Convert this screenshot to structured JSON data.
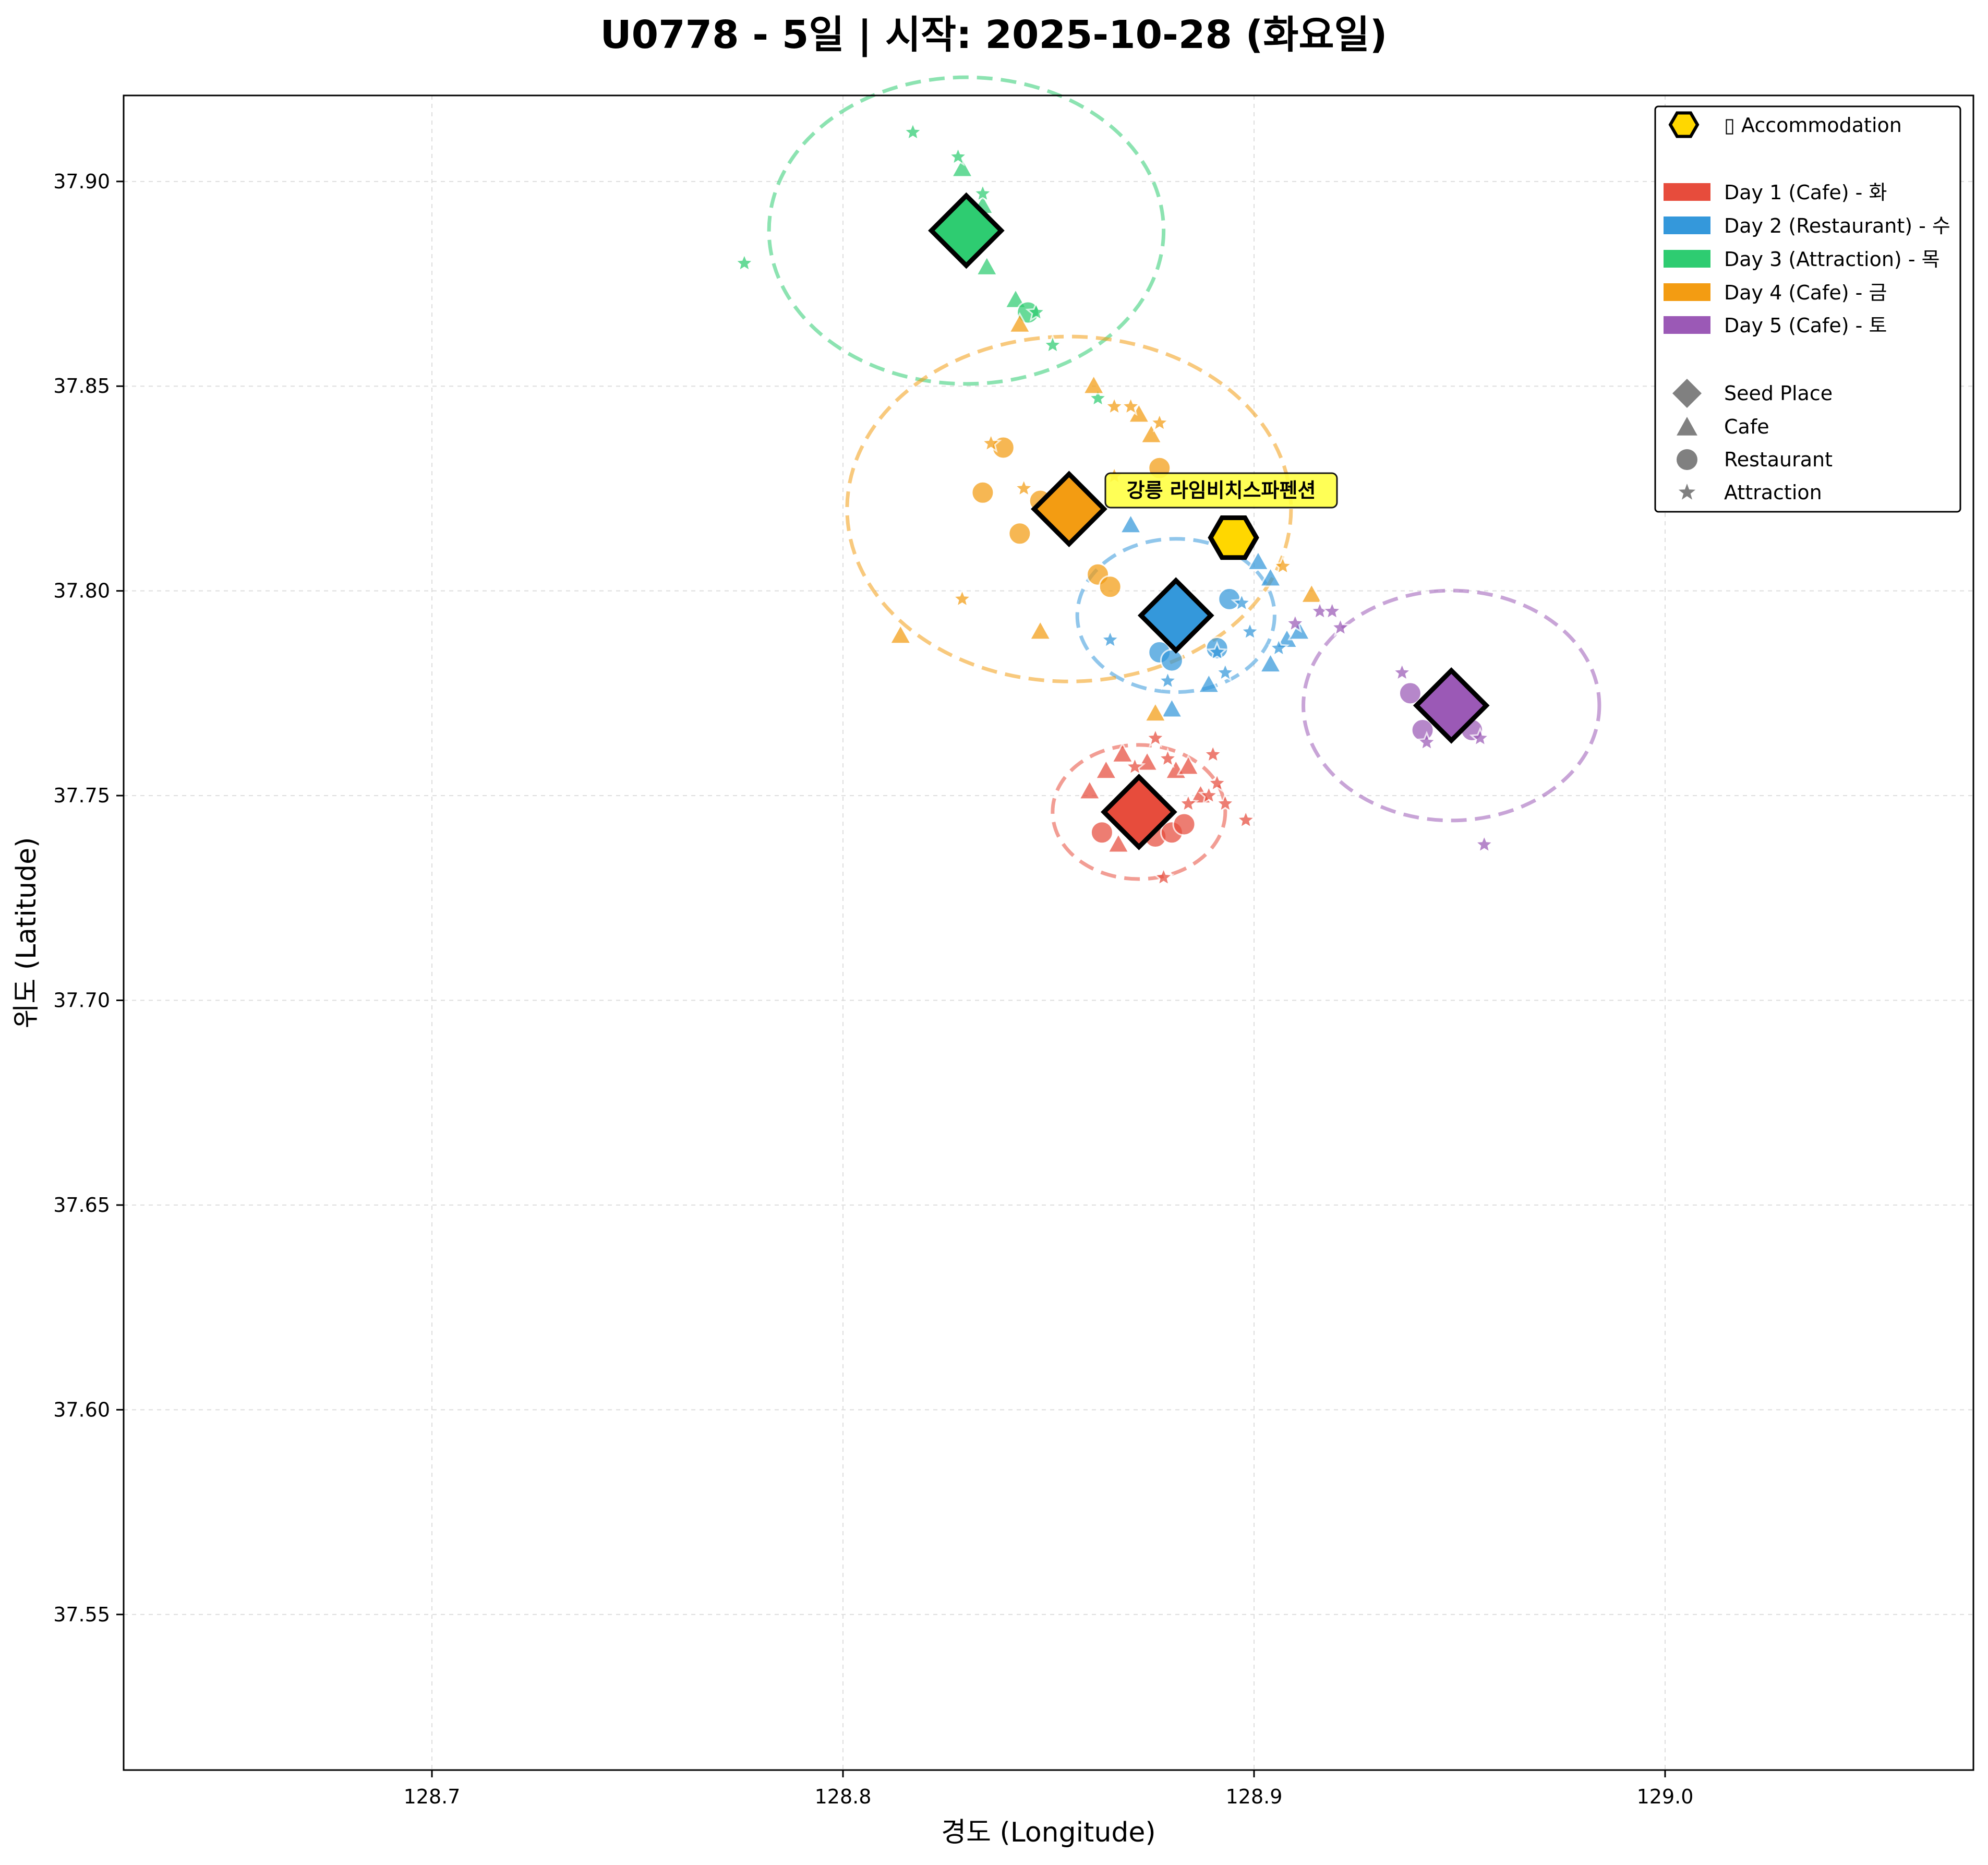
{
  "chart_data": {
    "type": "scatter",
    "title": "U0778 - 5일 | 시작: 2025-10-28 (화요일)",
    "xlabel": "경도 (Longitude)",
    "ylabel": "위도 (Latitude)",
    "xlim": [
      128.625,
      129.075
    ],
    "ylim": [
      37.512,
      37.921
    ],
    "x_ticks": [
      128.7,
      128.8,
      128.9,
      129.0
    ],
    "y_ticks": [
      37.55,
      37.6,
      37.65,
      37.7,
      37.75,
      37.8,
      37.85,
      37.9
    ],
    "grid": true,
    "legend_position": "top-right",
    "accommodation": {
      "label": "강릉 라임비치스파펜션",
      "x": 128.895,
      "y": 37.813,
      "color": "#FFD700"
    },
    "legend": {
      "accommodation_label": "▯ Accommodation",
      "day_entries": [
        "Day 1 (Cafe) - 화",
        "Day 2 (Restaurant) - 수",
        "Day 3 (Attraction) - 목",
        "Day 4 (Cafe) - 금",
        "Day 5 (Cafe) - 토"
      ],
      "marker_entries": [
        "Seed Place",
        "Cafe",
        "Restaurant",
        "Attraction"
      ]
    },
    "days": [
      {
        "color": "#E74C3C",
        "seed": {
          "x": 128.872,
          "y": 37.746
        },
        "radius_lon": 0.021,
        "places": [
          {
            "k": "cafe",
            "x": 128.86,
            "y": 37.751
          },
          {
            "k": "cafe",
            "x": 128.864,
            "y": 37.756
          },
          {
            "k": "cafe",
            "x": 128.868,
            "y": 37.76
          },
          {
            "k": "cafe",
            "x": 128.874,
            "y": 37.758
          },
          {
            "k": "cafe",
            "x": 128.881,
            "y": 37.756
          },
          {
            "k": "cafe",
            "x": 128.884,
            "y": 37.757
          },
          {
            "k": "cafe",
            "x": 128.867,
            "y": 37.738
          },
          {
            "k": "cafe",
            "x": 128.887,
            "y": 37.75
          },
          {
            "k": "restaurant",
            "x": 128.863,
            "y": 37.741
          },
          {
            "k": "restaurant",
            "x": 128.876,
            "y": 37.74
          },
          {
            "k": "restaurant",
            "x": 128.88,
            "y": 37.741
          },
          {
            "k": "restaurant",
            "x": 128.883,
            "y": 37.743
          },
          {
            "k": "attraction",
            "x": 128.876,
            "y": 37.764
          },
          {
            "k": "attraction",
            "x": 128.879,
            "y": 37.759
          },
          {
            "k": "attraction",
            "x": 128.89,
            "y": 37.76
          },
          {
            "k": "attraction",
            "x": 128.891,
            "y": 37.753
          },
          {
            "k": "attraction",
            "x": 128.884,
            "y": 37.748
          },
          {
            "k": "attraction",
            "x": 128.889,
            "y": 37.75
          },
          {
            "k": "attraction",
            "x": 128.893,
            "y": 37.748
          },
          {
            "k": "attraction",
            "x": 128.898,
            "y": 37.744
          },
          {
            "k": "attraction",
            "x": 128.878,
            "y": 37.73
          },
          {
            "k": "attraction",
            "x": 128.871,
            "y": 37.757
          }
        ]
      },
      {
        "color": "#3498DB",
        "seed": {
          "x": 128.881,
          "y": 37.794
        },
        "radius_lon": 0.024,
        "places": [
          {
            "k": "cafe",
            "x": 128.87,
            "y": 37.816
          },
          {
            "k": "cafe",
            "x": 128.901,
            "y": 37.807
          },
          {
            "k": "cafe",
            "x": 128.904,
            "y": 37.803
          },
          {
            "k": "cafe",
            "x": 128.889,
            "y": 37.777
          },
          {
            "k": "cafe",
            "x": 128.904,
            "y": 37.782
          },
          {
            "k": "cafe",
            "x": 128.908,
            "y": 37.788
          },
          {
            "k": "cafe",
            "x": 128.88,
            "y": 37.771
          },
          {
            "k": "cafe",
            "x": 128.911,
            "y": 37.79
          },
          {
            "k": "restaurant",
            "x": 128.877,
            "y": 37.785
          },
          {
            "k": "restaurant",
            "x": 128.88,
            "y": 37.783
          },
          {
            "k": "restaurant",
            "x": 128.891,
            "y": 37.786
          },
          {
            "k": "restaurant",
            "x": 128.894,
            "y": 37.798
          },
          {
            "k": "attraction",
            "x": 128.865,
            "y": 37.788
          },
          {
            "k": "attraction",
            "x": 128.879,
            "y": 37.778
          },
          {
            "k": "attraction",
            "x": 128.893,
            "y": 37.78
          },
          {
            "k": "attraction",
            "x": 128.899,
            "y": 37.79
          },
          {
            "k": "attraction",
            "x": 128.897,
            "y": 37.797
          },
          {
            "k": "attraction",
            "x": 128.906,
            "y": 37.786
          },
          {
            "k": "attraction",
            "x": 128.891,
            "y": 37.785
          }
        ]
      },
      {
        "color": "#2ECC71",
        "seed": {
          "x": 128.83,
          "y": 37.888
        },
        "radius_lon": 0.048,
        "places": [
          {
            "k": "cafe",
            "x": 128.829,
            "y": 37.903
          },
          {
            "k": "cafe",
            "x": 128.834,
            "y": 37.894
          },
          {
            "k": "cafe",
            "x": 128.835,
            "y": 37.879
          },
          {
            "k": "cafe",
            "x": 128.842,
            "y": 37.871
          },
          {
            "k": "restaurant",
            "x": 128.845,
            "y": 37.868
          },
          {
            "k": "attraction",
            "x": 128.817,
            "y": 37.912
          },
          {
            "k": "attraction",
            "x": 128.828,
            "y": 37.906
          },
          {
            "k": "attraction",
            "x": 128.834,
            "y": 37.897
          },
          {
            "k": "attraction",
            "x": 128.776,
            "y": 37.88
          },
          {
            "k": "attraction",
            "x": 128.847,
            "y": 37.868
          },
          {
            "k": "attraction",
            "x": 128.851,
            "y": 37.86
          },
          {
            "k": "attraction",
            "x": 128.862,
            "y": 37.847
          }
        ]
      },
      {
        "color": "#F39C12",
        "seed": {
          "x": 128.855,
          "y": 37.82
        },
        "radius_lon": 0.054,
        "places": [
          {
            "k": "cafe",
            "x": 128.843,
            "y": 37.865
          },
          {
            "k": "cafe",
            "x": 128.861,
            "y": 37.85
          },
          {
            "k": "cafe",
            "x": 128.872,
            "y": 37.843
          },
          {
            "k": "cafe",
            "x": 128.875,
            "y": 37.838
          },
          {
            "k": "cafe",
            "x": 128.814,
            "y": 37.789
          },
          {
            "k": "cafe",
            "x": 128.848,
            "y": 37.79
          },
          {
            "k": "cafe",
            "x": 128.914,
            "y": 37.799
          },
          {
            "k": "cafe",
            "x": 128.876,
            "y": 37.77
          },
          {
            "k": "restaurant",
            "x": 128.839,
            "y": 37.835
          },
          {
            "k": "restaurant",
            "x": 128.834,
            "y": 37.824
          },
          {
            "k": "restaurant",
            "x": 128.848,
            "y": 37.822
          },
          {
            "k": "restaurant",
            "x": 128.843,
            "y": 37.814
          },
          {
            "k": "restaurant",
            "x": 128.862,
            "y": 37.804
          },
          {
            "k": "restaurant",
            "x": 128.865,
            "y": 37.801
          },
          {
            "k": "restaurant",
            "x": 128.877,
            "y": 37.83
          },
          {
            "k": "attraction",
            "x": 128.866,
            "y": 37.845
          },
          {
            "k": "attraction",
            "x": 128.87,
            "y": 37.845
          },
          {
            "k": "attraction",
            "x": 128.877,
            "y": 37.841
          },
          {
            "k": "attraction",
            "x": 128.836,
            "y": 37.836
          },
          {
            "k": "attraction",
            "x": 128.844,
            "y": 37.825
          },
          {
            "k": "attraction",
            "x": 128.866,
            "y": 37.828
          },
          {
            "k": "attraction",
            "x": 128.829,
            "y": 37.798
          },
          {
            "k": "attraction",
            "x": 128.907,
            "y": 37.806
          }
        ]
      },
      {
        "color": "#9B59B6",
        "seed": {
          "x": 128.948,
          "y": 37.772
        },
        "radius_lon": 0.036,
        "places": [
          {
            "k": "restaurant",
            "x": 128.938,
            "y": 37.775
          },
          {
            "k": "restaurant",
            "x": 128.941,
            "y": 37.766
          },
          {
            "k": "restaurant",
            "x": 128.953,
            "y": 37.766
          },
          {
            "k": "attraction",
            "x": 128.936,
            "y": 37.78
          },
          {
            "k": "attraction",
            "x": 128.942,
            "y": 37.763
          },
          {
            "k": "attraction",
            "x": 128.955,
            "y": 37.764
          },
          {
            "k": "attraction",
            "x": 128.956,
            "y": 37.738
          },
          {
            "k": "attraction",
            "x": 128.91,
            "y": 37.792
          },
          {
            "k": "attraction",
            "x": 128.916,
            "y": 37.795
          },
          {
            "k": "attraction",
            "x": 128.921,
            "y": 37.791
          },
          {
            "k": "attraction",
            "x": 128.919,
            "y": 37.795
          }
        ]
      }
    ]
  }
}
